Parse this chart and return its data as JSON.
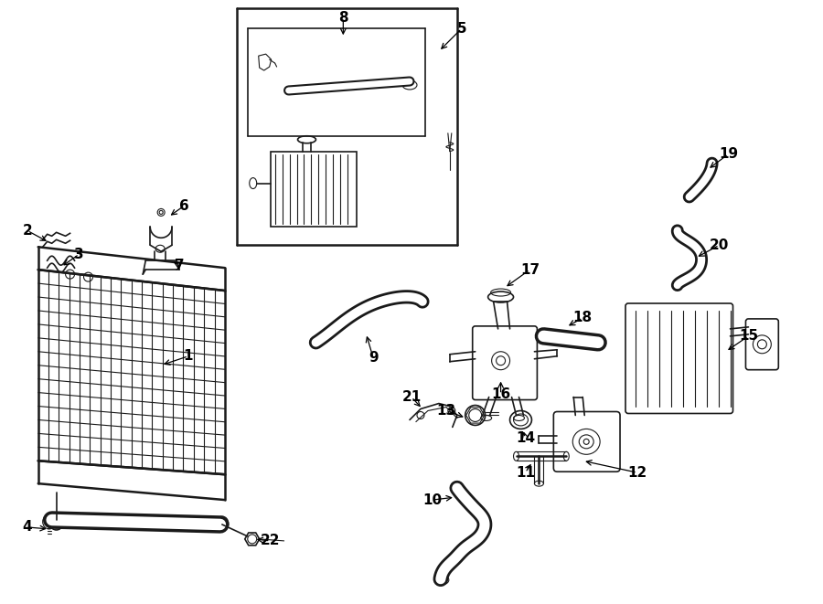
{
  "bg_color": "#ffffff",
  "line_color": "#1a1a1a",
  "fig_width": 9.0,
  "fig_height": 6.61,
  "dpi": 100,
  "label_fontsize": 11,
  "small_fontsize": 9
}
